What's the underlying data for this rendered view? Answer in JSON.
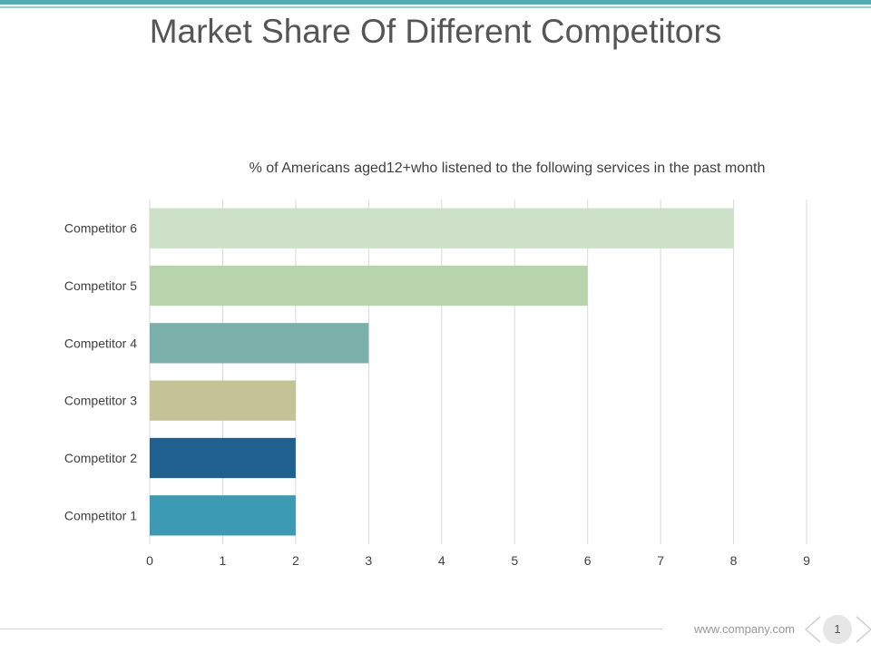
{
  "slide": {
    "title": "Market Share Of Different Competitors",
    "footer_url": "www.company.com",
    "page_number": "1"
  },
  "colors": {
    "top_bar": "#56a8b2",
    "top_bar_thin": "#9ccbd2",
    "grid": "#d9d9d9",
    "tick_text": "#404040",
    "pager_chevron": "#d0d0d0"
  },
  "chart_data": {
    "type": "bar",
    "orientation": "horizontal",
    "title": "% of Americans aged12+who listened to the following services in the past month",
    "categories": [
      "Competitor 6",
      "Competitor 5",
      "Competitor 4",
      "Competitor 3",
      "Competitor 2",
      "Competitor 1"
    ],
    "values": [
      8,
      6,
      3,
      2,
      2,
      2
    ],
    "bar_colors": [
      "#cde0c8",
      "#b8d4ad",
      "#7aafaa",
      "#c4c397",
      "#20608f",
      "#3c9ab3"
    ],
    "xlim": [
      0,
      9
    ],
    "xticks": [
      0,
      1,
      2,
      3,
      4,
      5,
      6,
      7,
      8,
      9
    ],
    "xlabel": "",
    "ylabel": "",
    "grid": true,
    "legend": "none"
  }
}
